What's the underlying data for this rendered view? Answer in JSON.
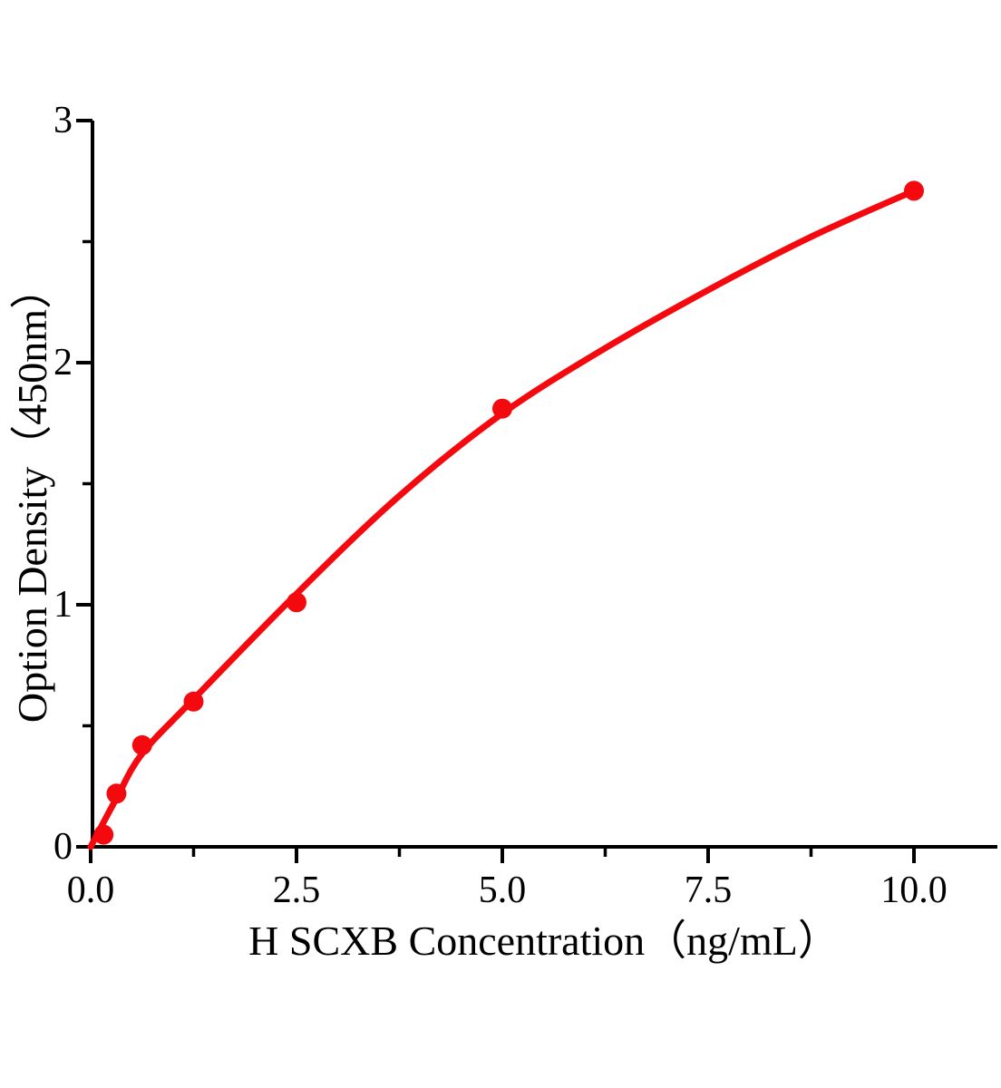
{
  "figure": {
    "background_color": "#ffffff",
    "axis_color": "#000000",
    "accent_red": "#f40a0e"
  },
  "chart_data": {
    "type": "scatter",
    "title": "",
    "xlabel": "H SCXB Concentration（ng/mL）",
    "ylabel": "Option Density（450nm）",
    "xlim": [
      0,
      11.0
    ],
    "ylim": [
      0,
      3
    ],
    "grid": false,
    "legend": null,
    "x_axis": {
      "major_ticks": [
        0,
        2.5,
        5,
        7.5,
        10
      ],
      "major_tick_labels": [
        "0.0",
        "2.5",
        "5.0",
        "7.5",
        "10.0"
      ],
      "minor_ticks": [
        1.25,
        3.75,
        6.25,
        8.75
      ]
    },
    "y_axis": {
      "major_ticks": [
        0,
        1,
        2,
        3
      ],
      "major_tick_labels": [
        "0",
        "1",
        "2",
        "3"
      ],
      "minor_ticks": [
        0.5,
        1.5,
        2.5
      ]
    },
    "series": [
      {
        "name": "standard-points",
        "type": "scatter",
        "marker": "circle",
        "color": "#f40a0e",
        "x": [
          0.156,
          0.3125,
          0.625,
          1.25,
          2.5,
          5,
          10
        ],
        "y": [
          0.05,
          0.22,
          0.42,
          0.6,
          1.01,
          1.81,
          2.71
        ]
      },
      {
        "name": "fitted-curve",
        "type": "line",
        "color": "#f40a0e",
        "x": [
          0,
          0.3125,
          0.625,
          1.25,
          2.5,
          3.75,
          5,
          6.25,
          7.5,
          8.75,
          10
        ],
        "y": [
          0.0,
          0.2,
          0.385,
          0.61,
          1.045,
          1.45,
          1.79,
          2.06,
          2.3,
          2.52,
          2.71
        ]
      }
    ]
  }
}
